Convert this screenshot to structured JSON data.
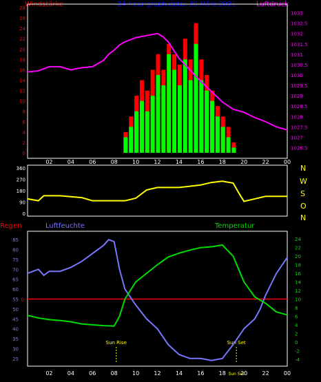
{
  "header": {
    "left_label": "Windstärke",
    "title": "24-hour graph data: 30.März 2021",
    "right_label": "Luftdruck"
  },
  "colors": {
    "background": "#000000",
    "frame": "#ffffff",
    "wind_left_axis": "#ff0000",
    "pressure": "#ff00ff",
    "gust": "#ff0000",
    "wind": "#00ff00",
    "wind_calm": "#000000",
    "direction": "#ffff00",
    "humidity": "#7777ff",
    "temperature": "#00dd00",
    "rain": "#ff0000",
    "title": "#0000ff",
    "time_axis": "#ffffff",
    "sun": "#ffff00"
  },
  "bottom_panel": {
    "left_label_1": "Regen",
    "left_label_2": "Luftfeuchte",
    "right_label": "Temperatur",
    "sunrise": "Sun Rise",
    "sunset": "Sun Set",
    "sunset_time_label": "Sun Set"
  },
  "compass": [
    "N",
    "W",
    "S",
    "O",
    "N"
  ],
  "chart_data": [
    {
      "type": "area",
      "name": "wind-and-pressure",
      "x_ticks": [
        "02",
        "04",
        "06",
        "08",
        "10",
        "12",
        "14",
        "16",
        "18",
        "20",
        "22",
        "00"
      ],
      "left_axis": {
        "label": "Windstärke",
        "ticks": [
          "0",
          "2",
          "4",
          "6",
          "8",
          "10",
          "12",
          "14",
          "16",
          "18",
          "20",
          "22",
          "24",
          "26",
          "28"
        ],
        "range": [
          0,
          28
        ]
      },
      "right_axis": {
        "label": "Luftdruck",
        "ticks": [
          "1026.5",
          "1027",
          "1027.5",
          "1028",
          "1028.5",
          "1029",
          "1029.5",
          "1030",
          "1030.5",
          "1031",
          "1031.5",
          "1032",
          "1032.5",
          "1033"
        ],
        "range": [
          1026.25,
          1033.25
        ]
      },
      "pressure": {
        "x": [
          0,
          1,
          2,
          3,
          4,
          5,
          6,
          7,
          7.5,
          8,
          8.5,
          9,
          10,
          11,
          12,
          12.5,
          13,
          13.5,
          14,
          15,
          16,
          17,
          18,
          19,
          20,
          21,
          22,
          23,
          24
        ],
        "y": [
          1030.15,
          1030.2,
          1030.4,
          1030.4,
          1030.25,
          1030.35,
          1030.4,
          1030.7,
          1031.0,
          1031.2,
          1031.45,
          1031.6,
          1031.8,
          1031.9,
          1032.0,
          1031.85,
          1031.6,
          1031.2,
          1030.8,
          1030.25,
          1029.7,
          1029.2,
          1028.7,
          1028.35,
          1028.2,
          1027.95,
          1027.75,
          1027.5,
          1027.35
        ]
      },
      "gusts": {
        "x": [
          9.0,
          9.5,
          10.0,
          10.5,
          11.0,
          11.5,
          12.0,
          12.5,
          13.0,
          13.5,
          14.0,
          14.5,
          15.0,
          15.5,
          16.0,
          16.5,
          17.0,
          17.5,
          18.0,
          18.5,
          19.0
        ],
        "y": [
          4,
          7,
          11,
          14,
          12,
          16,
          19,
          16,
          21,
          19,
          17,
          22,
          18,
          25,
          18,
          15,
          12,
          9,
          7,
          5,
          2
        ]
      },
      "wind": {
        "x": [
          9.0,
          9.5,
          10.0,
          10.5,
          11.0,
          11.5,
          12.0,
          12.5,
          13.0,
          13.5,
          14.0,
          14.5,
          15.0,
          15.5,
          16.0,
          16.5,
          17.0,
          17.5,
          18.0,
          18.5,
          19.0
        ],
        "y": [
          3,
          5,
          8,
          10,
          8,
          11,
          15,
          13,
          19,
          16,
          13,
          18,
          14,
          21,
          14,
          12,
          10,
          7,
          5,
          3,
          1
        ]
      }
    },
    {
      "type": "line",
      "name": "wind-direction",
      "left_axis": {
        "ticks": [
          "0",
          "90",
          "180",
          "270",
          "360"
        ],
        "range": [
          0,
          360
        ]
      },
      "direction": {
        "x": [
          0,
          1,
          1.5,
          3,
          5,
          6,
          8,
          9,
          10,
          11,
          12,
          13,
          14,
          15,
          16,
          17,
          18,
          19,
          19.5,
          20,
          21,
          22,
          23,
          24
        ],
        "y": [
          115,
          100,
          140,
          140,
          125,
          100,
          100,
          100,
          120,
          185,
          205,
          205,
          205,
          215,
          225,
          245,
          255,
          240,
          165,
          95,
          115,
          135,
          135,
          135
        ]
      }
    },
    {
      "type": "line",
      "name": "humidity-temperature-rain",
      "left_axis": {
        "label": "Luftfeuchte",
        "ticks": [
          "25",
          "30",
          "35",
          "40",
          "45",
          "50",
          "55",
          "60",
          "65",
          "70",
          "75",
          "80",
          "85"
        ],
        "range": [
          22.5,
          87.5
        ]
      },
      "right_axis": {
        "label": "Temperatur",
        "ticks": [
          "-4",
          "-2",
          "0",
          "2",
          "4",
          "6",
          "8",
          "10",
          "12",
          "14",
          "16",
          "18",
          "20",
          "22",
          "24"
        ],
        "range": [
          -5,
          25
        ]
      },
      "rain_axis": {
        "label": "Regen",
        "ticks": [
          "0"
        ]
      },
      "humidity": {
        "x": [
          0,
          1,
          1.5,
          2,
          3,
          4,
          5,
          6,
          7,
          7.5,
          8,
          8.5,
          9,
          10,
          11,
          12,
          13,
          14,
          15,
          16,
          17,
          18,
          19,
          20,
          21,
          21.5,
          22,
          23,
          24
        ],
        "y": [
          68,
          70,
          67,
          69,
          69,
          71,
          74,
          78,
          82,
          85,
          84,
          70,
          60,
          52,
          45,
          40,
          32,
          27,
          25,
          25,
          24,
          25,
          32,
          40,
          45,
          50,
          57,
          68,
          76
        ]
      },
      "temperature": {
        "x": [
          0,
          1,
          2,
          3,
          4,
          5,
          6,
          7,
          8,
          8.5,
          9,
          10,
          11,
          12,
          13,
          14,
          15,
          16,
          17,
          18,
          19,
          20,
          21,
          22,
          23,
          24
        ],
        "y": [
          6.2,
          5.6,
          5.2,
          5.0,
          4.7,
          4.2,
          4.0,
          3.8,
          3.7,
          6.0,
          10.0,
          14.0,
          16.0,
          18.0,
          19.8,
          20.7,
          21.4,
          22.0,
          22.2,
          22.6,
          20.0,
          14.0,
          10.5,
          9.0,
          7.0,
          6.3
        ]
      },
      "rain": {
        "x": [
          0,
          24
        ],
        "y": [
          0,
          0
        ]
      },
      "sunrise_hour": 8.2,
      "sunset_hour": 19.3,
      "x_ticks": [
        "02",
        "04",
        "06",
        "08",
        "10",
        "12",
        "14",
        "16",
        "18",
        "20",
        "22",
        "00"
      ]
    }
  ]
}
